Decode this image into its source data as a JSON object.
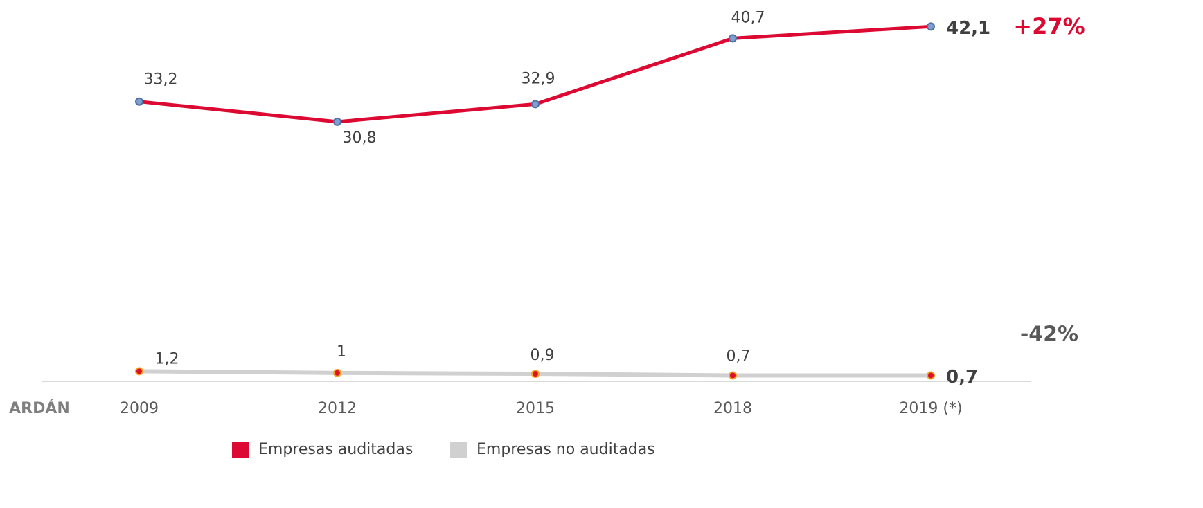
{
  "chart_data": {
    "type": "line",
    "categories": [
      "2009",
      "2012",
      "2015",
      "2018",
      "2019 (*)"
    ],
    "series": [
      {
        "name": "Empresas auditadas",
        "color": "#dc0a32",
        "marker_color": "#7f9fd0",
        "values": [
          33.2,
          30.8,
          32.9,
          40.7,
          42.1
        ],
        "value_labels": [
          "33,2",
          "30,8",
          "32,9",
          "40,7",
          "42,1"
        ]
      },
      {
        "name": "Empresas no auditadas",
        "color": "#d0d0d0",
        "marker_color": "#e0102a",
        "values": [
          1.2,
          1,
          0.9,
          0.7,
          0.7
        ],
        "value_labels": [
          "1,2",
          "1",
          "0,9",
          "0,7",
          "0,7"
        ]
      }
    ],
    "ylim": [
      0,
      45
    ],
    "annotations": [
      "+27%",
      "-42%",
      "ARDÁN"
    ]
  }
}
